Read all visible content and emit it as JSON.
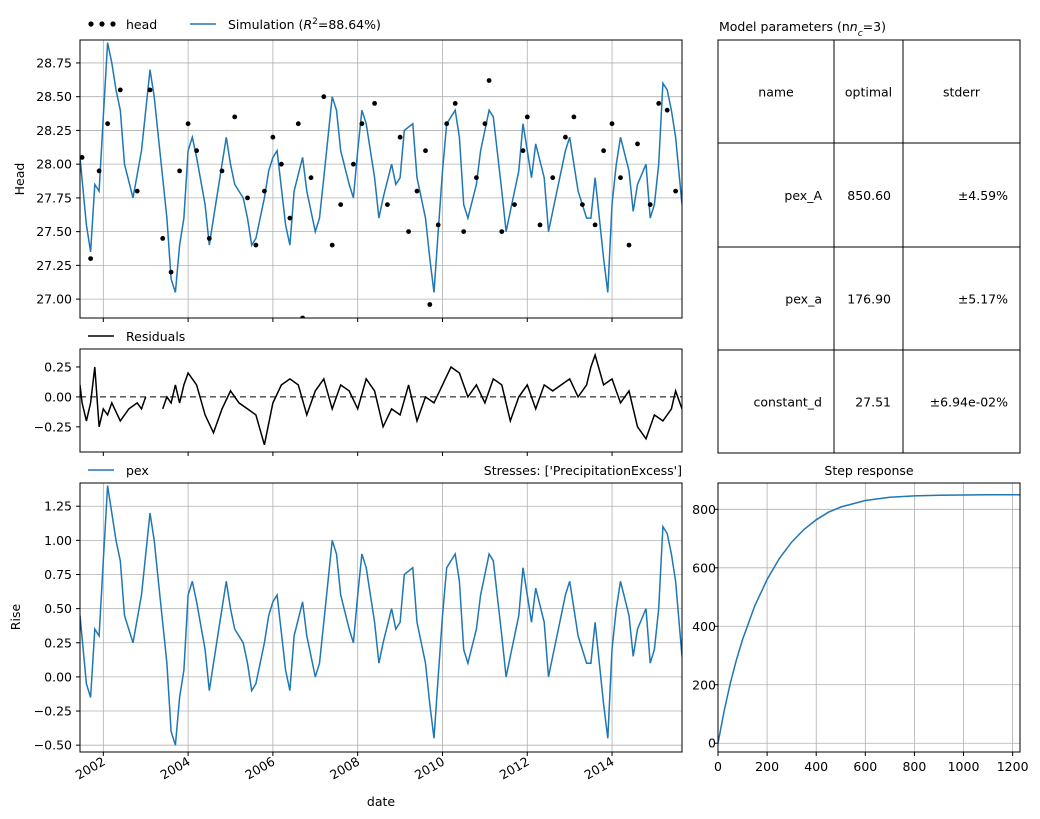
{
  "colors": {
    "simulation": "#1f77b4",
    "head": "#000000",
    "residuals": "#000000",
    "pex": "#1f77b4",
    "step": "#1f77b4",
    "grid": "#b0b0b0"
  },
  "chart_data": [
    {
      "id": "head",
      "type": "line",
      "ylabel": "Head",
      "xlim": [
        2001.45,
        2015.65
      ],
      "ylim": [
        26.86,
        28.92
      ],
      "yticks": [
        27.0,
        27.25,
        27.5,
        27.75,
        28.0,
        28.25,
        28.5,
        28.75
      ],
      "ytick_labels": [
        "27.00",
        "27.25",
        "27.50",
        "27.75",
        "28.00",
        "28.25",
        "28.50",
        "28.75"
      ],
      "xticks": [
        2002,
        2004,
        2006,
        2008,
        2010,
        2012,
        2014
      ],
      "grid": true,
      "legend": {
        "placement": "top-left",
        "entries": [
          "head",
          "Simulation (R²=88.64%)"
        ]
      },
      "series": [
        {
          "name": "head",
          "style": "markers",
          "x": [
            2001.5,
            2001.7,
            2001.9,
            2002.1,
            2002.4,
            2002.8,
            2003.1,
            2003.4,
            2003.6,
            2003.8,
            2004.0,
            2004.2,
            2004.5,
            2004.8,
            2005.1,
            2005.4,
            2005.6,
            2005.8,
            2006.0,
            2006.2,
            2006.4,
            2006.6,
            2006.7,
            2006.9,
            2007.2,
            2007.4,
            2007.6,
            2007.9,
            2008.1,
            2008.4,
            2008.7,
            2009.0,
            2009.2,
            2009.4,
            2009.6,
            2009.7,
            2009.9,
            2010.1,
            2010.3,
            2010.5,
            2010.8,
            2011.0,
            2011.1,
            2011.4,
            2011.7,
            2011.9,
            2012.0,
            2012.3,
            2012.6,
            2012.9,
            2013.1,
            2013.3,
            2013.6,
            2013.8,
            2014.0,
            2014.2,
            2014.4,
            2014.6,
            2014.9,
            2015.1,
            2015.3,
            2015.5
          ],
          "y": [
            28.05,
            27.3,
            27.95,
            28.3,
            28.55,
            27.8,
            28.55,
            27.45,
            27.2,
            27.95,
            28.3,
            28.1,
            27.45,
            27.95,
            28.35,
            27.75,
            27.4,
            27.8,
            28.2,
            28.0,
            27.6,
            28.3,
            26.86,
            27.9,
            28.5,
            27.4,
            27.7,
            28.0,
            28.3,
            28.45,
            27.7,
            28.2,
            27.5,
            27.8,
            28.1,
            26.96,
            27.55,
            28.3,
            28.45,
            27.5,
            27.9,
            28.3,
            28.62,
            27.5,
            27.7,
            28.1,
            28.35,
            27.55,
            27.9,
            28.2,
            28.35,
            27.7,
            27.55,
            28.1,
            28.3,
            27.9,
            27.4,
            28.15,
            27.7,
            28.45,
            28.4,
            27.8
          ]
        },
        {
          "name": "Simulation (R²=88.64%)",
          "style": "line",
          "x": [
            2001.45,
            2001.6,
            2001.7,
            2001.8,
            2001.9,
            2002.0,
            2002.1,
            2002.2,
            2002.3,
            2002.4,
            2002.5,
            2002.7,
            2002.9,
            2003.1,
            2003.2,
            2003.3,
            2003.5,
            2003.6,
            2003.7,
            2003.8,
            2003.9,
            2004.0,
            2004.1,
            2004.2,
            2004.4,
            2004.5,
            2004.6,
            2004.8,
            2004.9,
            2005.0,
            2005.1,
            2005.3,
            2005.4,
            2005.5,
            2005.6,
            2005.8,
            2005.9,
            2006.0,
            2006.1,
            2006.3,
            2006.4,
            2006.5,
            2006.7,
            2006.8,
            2007.0,
            2007.1,
            2007.2,
            2007.4,
            2007.5,
            2007.6,
            2007.8,
            2007.9,
            2008.0,
            2008.1,
            2008.2,
            2008.4,
            2008.5,
            2008.6,
            2008.8,
            2008.9,
            2009.0,
            2009.1,
            2009.3,
            2009.4,
            2009.6,
            2009.7,
            2009.8,
            2009.9,
            2010.0,
            2010.1,
            2010.3,
            2010.4,
            2010.5,
            2010.6,
            2010.8,
            2010.9,
            2011.0,
            2011.1,
            2011.2,
            2011.4,
            2011.5,
            2011.6,
            2011.8,
            2011.9,
            2012.0,
            2012.1,
            2012.2,
            2012.4,
            2012.5,
            2012.6,
            2012.8,
            2012.9,
            2013.0,
            2013.1,
            2013.2,
            2013.4,
            2013.5,
            2013.6,
            2013.8,
            2013.9,
            2014.0,
            2014.1,
            2014.2,
            2014.4,
            2014.5,
            2014.6,
            2014.8,
            2014.9,
            2015.0,
            2015.1,
            2015.2,
            2015.3,
            2015.4,
            2015.5,
            2015.65
          ],
          "y": [
            28.05,
            27.55,
            27.35,
            27.85,
            27.8,
            28.35,
            28.9,
            28.75,
            28.55,
            28.4,
            28.0,
            27.75,
            28.1,
            28.7,
            28.5,
            28.2,
            27.6,
            27.15,
            27.05,
            27.4,
            27.6,
            28.1,
            28.2,
            28.05,
            27.7,
            27.4,
            27.6,
            28.0,
            28.2,
            28.0,
            27.85,
            27.75,
            27.6,
            27.4,
            27.45,
            27.75,
            27.95,
            28.05,
            28.1,
            27.55,
            27.4,
            27.8,
            28.05,
            27.8,
            27.5,
            27.6,
            27.9,
            28.5,
            28.4,
            28.1,
            27.85,
            27.75,
            28.1,
            28.4,
            28.3,
            27.9,
            27.6,
            27.75,
            28.0,
            27.85,
            27.9,
            28.25,
            28.3,
            27.9,
            27.6,
            27.3,
            27.05,
            27.5,
            27.95,
            28.3,
            28.4,
            28.2,
            27.7,
            27.6,
            27.85,
            28.1,
            28.25,
            28.4,
            28.35,
            27.8,
            27.5,
            27.65,
            27.95,
            28.3,
            28.1,
            27.9,
            28.15,
            27.9,
            27.5,
            27.65,
            27.95,
            28.1,
            28.2,
            28.0,
            27.8,
            27.6,
            27.6,
            27.9,
            27.3,
            27.05,
            27.7,
            28.0,
            28.2,
            27.95,
            27.65,
            27.85,
            28.0,
            27.6,
            27.7,
            28.0,
            28.6,
            28.55,
            28.4,
            28.2,
            27.7
          ]
        }
      ]
    },
    {
      "id": "residuals",
      "type": "line",
      "xlim": [
        2001.45,
        2015.65
      ],
      "ylim": [
        -0.46,
        0.4
      ],
      "yticks": [
        -0.25,
        0.0,
        0.25
      ],
      "ytick_labels": [
        "−0.25",
        "0.00",
        "0.25"
      ],
      "xticks": [
        2002,
        2004,
        2006,
        2008,
        2010,
        2012,
        2014
      ],
      "zero_line": "dashed",
      "grid": false,
      "legend": {
        "placement": "top-left",
        "entries": [
          "Residuals"
        ]
      },
      "series": [
        {
          "name": "Residuals",
          "segments": [
            {
              "x": [
                2001.45,
                2001.5,
                2001.6,
                2001.7,
                2001.8,
                2001.9,
                2002.0,
                2002.1,
                2002.2,
                2002.4,
                2002.6,
                2002.8,
                2002.9,
                2003.0
              ],
              "y": [
                0.1,
                -0.05,
                -0.2,
                -0.05,
                0.25,
                -0.25,
                -0.1,
                -0.15,
                -0.05,
                -0.2,
                -0.1,
                -0.05,
                -0.1,
                0.0
              ]
            },
            {
              "x": [
                2003.4,
                2003.5,
                2003.6,
                2003.7,
                2003.8,
                2003.9,
                2004.0,
                2004.2,
                2004.4,
                2004.6,
                2004.8,
                2005.0,
                2005.2,
                2005.4,
                2005.6,
                2005.8,
                2006.0,
                2006.2,
                2006.4,
                2006.6,
                2006.8,
                2007.0,
                2007.2,
                2007.4,
                2007.6,
                2007.8,
                2008.0,
                2008.2,
                2008.4,
                2008.6,
                2008.8,
                2009.0,
                2009.2,
                2009.4,
                2009.6,
                2009.8,
                2010.0,
                2010.2,
                2010.4,
                2010.6,
                2010.8,
                2011.0,
                2011.2,
                2011.4,
                2011.6,
                2011.8,
                2012.0,
                2012.2,
                2012.4,
                2012.6,
                2012.8,
                2013.0,
                2013.2,
                2013.4,
                2013.5,
                2013.6,
                2013.8,
                2014.0,
                2014.2,
                2014.4,
                2014.6,
                2014.8,
                2015.0,
                2015.2,
                2015.4,
                2015.5,
                2015.65
              ],
              "y": [
                -0.1,
                0.0,
                -0.05,
                0.1,
                -0.05,
                0.1,
                0.2,
                0.1,
                -0.15,
                -0.3,
                -0.1,
                0.05,
                -0.05,
                -0.1,
                -0.15,
                -0.4,
                -0.05,
                0.1,
                0.15,
                0.1,
                -0.15,
                0.05,
                0.15,
                -0.1,
                0.1,
                0.05,
                -0.1,
                0.15,
                0.05,
                -0.25,
                -0.1,
                -0.15,
                0.1,
                -0.2,
                0.0,
                -0.05,
                0.1,
                0.25,
                0.2,
                0.0,
                0.1,
                -0.05,
                0.15,
                0.1,
                -0.2,
                0.0,
                0.1,
                -0.1,
                0.1,
                0.05,
                0.1,
                0.15,
                0.0,
                0.1,
                0.25,
                0.35,
                0.1,
                0.15,
                -0.05,
                0.05,
                -0.25,
                -0.35,
                -0.15,
                -0.2,
                -0.1,
                0.05,
                -0.1
              ]
            }
          ]
        }
      ]
    },
    {
      "id": "contribution",
      "type": "line",
      "ylabel": "Rise",
      "xlabel": "date",
      "xlim": [
        2001.45,
        2015.65
      ],
      "ylim": [
        -0.55,
        1.42
      ],
      "yticks": [
        -0.5,
        -0.25,
        0.0,
        0.25,
        0.5,
        0.75,
        1.0,
        1.25
      ],
      "ytick_labels": [
        "−0.50",
        "−0.25",
        "0.00",
        "0.25",
        "0.50",
        "0.75",
        "1.00",
        "1.25"
      ],
      "xticks": [
        2002,
        2004,
        2006,
        2008,
        2010,
        2012,
        2014
      ],
      "xtick_labels": [
        "2002",
        "2004",
        "2006",
        "2008",
        "2010",
        "2012",
        "2014"
      ],
      "grid": true,
      "legend": {
        "placement": "top-left",
        "entries": [
          "pex"
        ]
      },
      "annotation": "Stresses: ['PrecipitationExcess']",
      "series": [
        {
          "name": "pex",
          "x": [
            2001.45,
            2001.6,
            2001.7,
            2001.8,
            2001.9,
            2002.0,
            2002.1,
            2002.2,
            2002.3,
            2002.4,
            2002.5,
            2002.7,
            2002.9,
            2003.1,
            2003.2,
            2003.3,
            2003.5,
            2003.6,
            2003.7,
            2003.8,
            2003.9,
            2004.0,
            2004.1,
            2004.2,
            2004.4,
            2004.5,
            2004.6,
            2004.8,
            2004.9,
            2005.0,
            2005.1,
            2005.3,
            2005.4,
            2005.5,
            2005.6,
            2005.8,
            2005.9,
            2006.0,
            2006.1,
            2006.3,
            2006.4,
            2006.5,
            2006.7,
            2006.8,
            2007.0,
            2007.1,
            2007.2,
            2007.4,
            2007.5,
            2007.6,
            2007.8,
            2007.9,
            2008.0,
            2008.1,
            2008.2,
            2008.4,
            2008.5,
            2008.6,
            2008.8,
            2008.9,
            2009.0,
            2009.1,
            2009.3,
            2009.4,
            2009.6,
            2009.7,
            2009.8,
            2009.9,
            2010.0,
            2010.1,
            2010.3,
            2010.4,
            2010.5,
            2010.6,
            2010.8,
            2010.9,
            2011.0,
            2011.1,
            2011.2,
            2011.4,
            2011.5,
            2011.6,
            2011.8,
            2011.9,
            2012.0,
            2012.1,
            2012.2,
            2012.4,
            2012.5,
            2012.6,
            2012.8,
            2012.9,
            2013.0,
            2013.1,
            2013.2,
            2013.4,
            2013.5,
            2013.6,
            2013.8,
            2013.9,
            2014.0,
            2014.1,
            2014.2,
            2014.4,
            2014.5,
            2014.6,
            2014.8,
            2014.9,
            2015.0,
            2015.1,
            2015.2,
            2015.3,
            2015.4,
            2015.5,
            2015.65
          ],
          "y": [
            0.45,
            -0.05,
            -0.15,
            0.35,
            0.3,
            0.85,
            1.4,
            1.2,
            1.0,
            0.85,
            0.45,
            0.25,
            0.6,
            1.2,
            1.0,
            0.7,
            0.1,
            -0.4,
            -0.5,
            -0.15,
            0.05,
            0.6,
            0.7,
            0.55,
            0.2,
            -0.1,
            0.1,
            0.5,
            0.7,
            0.5,
            0.35,
            0.25,
            0.1,
            -0.1,
            -0.05,
            0.25,
            0.45,
            0.55,
            0.6,
            0.05,
            -0.1,
            0.3,
            0.55,
            0.3,
            0.0,
            0.1,
            0.4,
            1.0,
            0.9,
            0.6,
            0.35,
            0.25,
            0.6,
            0.9,
            0.8,
            0.4,
            0.1,
            0.25,
            0.5,
            0.35,
            0.4,
            0.75,
            0.8,
            0.4,
            0.1,
            -0.2,
            -0.45,
            0.0,
            0.45,
            0.8,
            0.9,
            0.7,
            0.2,
            0.1,
            0.35,
            0.6,
            0.75,
            0.9,
            0.85,
            0.3,
            0.0,
            0.15,
            0.45,
            0.8,
            0.6,
            0.4,
            0.65,
            0.4,
            0.0,
            0.15,
            0.45,
            0.6,
            0.7,
            0.5,
            0.3,
            0.1,
            0.1,
            0.4,
            -0.2,
            -0.45,
            0.2,
            0.5,
            0.7,
            0.45,
            0.15,
            0.35,
            0.5,
            0.1,
            0.2,
            0.5,
            1.1,
            1.05,
            0.9,
            0.7,
            0.15
          ]
        }
      ]
    },
    {
      "id": "step",
      "type": "line",
      "title": "Step response",
      "xlim": [
        0,
        1230
      ],
      "ylim": [
        -30,
        890
      ],
      "yticks": [
        0,
        200,
        400,
        600,
        800
      ],
      "ytick_labels": [
        "0",
        "200",
        "400",
        "600",
        "800"
      ],
      "xticks": [
        0,
        200,
        400,
        600,
        800,
        1000,
        1200
      ],
      "xtick_labels": [
        "0",
        "200",
        "400",
        "600",
        "800",
        "1000",
        "1200"
      ],
      "grid": true,
      "series": [
        {
          "name": "",
          "x": [
            0,
            25,
            50,
            75,
            100,
            150,
            200,
            250,
            300,
            350,
            400,
            450,
            500,
            600,
            700,
            800,
            900,
            1000,
            1100,
            1230
          ],
          "y": [
            0,
            110,
            205,
            285,
            355,
            470,
            560,
            632,
            688,
            731,
            764,
            790,
            808,
            830,
            841,
            846,
            848,
            849,
            850,
            850
          ]
        }
      ]
    }
  ],
  "table": {
    "title": "Model parameters (n",
    "title_sub": "c",
    "title_end": "=3)",
    "headers": [
      "name",
      "optimal",
      "stderr"
    ],
    "rows": [
      [
        "pex_A",
        "850.60",
        "±4.59%"
      ],
      [
        "pex_a",
        "176.90",
        "±5.17%"
      ],
      [
        "constant_d",
        "27.51",
        "±6.94e-02%"
      ]
    ]
  }
}
